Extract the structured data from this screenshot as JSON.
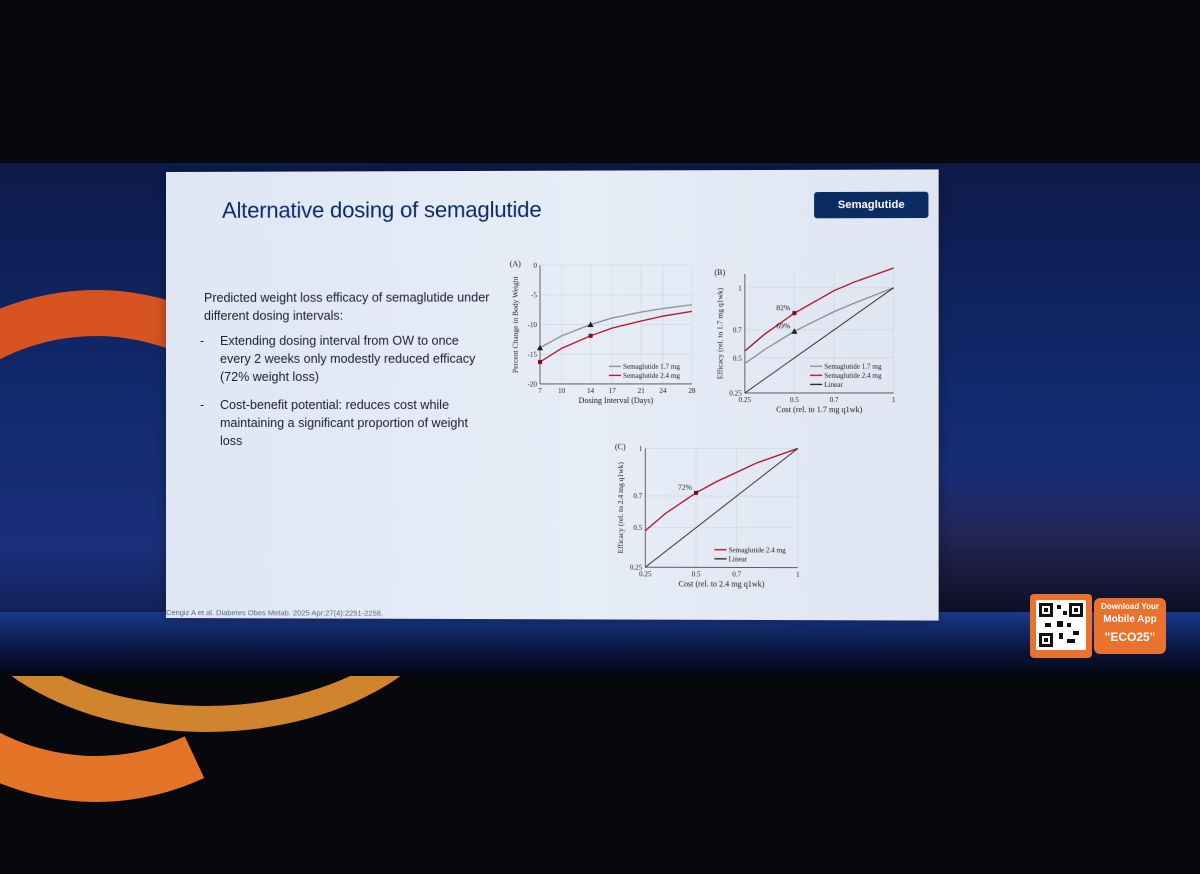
{
  "slide": {
    "title": "Alternative dosing of semaglutide",
    "tag": "Semaglutide",
    "intro": "Predicted weight loss efficacy of semaglutide under different dosing intervals:",
    "bullets": [
      "Extending dosing interval from OW to once every 2 weeks only modestly reduced efficacy (72% weight loss)",
      "Cost-benefit potential: reduces cost while maintaining a significant proportion of weight loss"
    ],
    "dash": "-",
    "citation": "Cengiz A et al. Diabetes Obes Metab. 2025 Apr;27(4):2251-2258."
  },
  "banner": {
    "line1": "Download Your",
    "line2": "Mobile App",
    "line3": "\"ECO25\""
  },
  "colors": {
    "semaglutide_17": "#8c8c8c",
    "semaglutide_24": "#b01020",
    "linear": "#222222"
  },
  "chart_data": [
    {
      "id": "A",
      "type": "line",
      "panel_label": "(A)",
      "xlabel": "Dosing Interval (Days)",
      "ylabel": "Percent Change in Body Weight",
      "xlim": [
        7,
        28
      ],
      "ylim": [
        -20,
        0
      ],
      "xticks": [
        7,
        10,
        14,
        17,
        21,
        24,
        28
      ],
      "yticks": [
        0,
        -5,
        -10,
        -15,
        -20
      ],
      "series": [
        {
          "name": "Semaglutide 1.7 mg",
          "color": "#8c8c8c",
          "x": [
            7,
            10,
            14,
            17,
            21,
            24,
            28
          ],
          "y": [
            -13.9,
            -11.9,
            -10.0,
            -8.9,
            -7.9,
            -7.3,
            -6.7
          ]
        },
        {
          "name": "Semaglutide 2.4 mg",
          "color": "#b01020",
          "x": [
            7,
            10,
            14,
            17,
            21,
            24,
            28
          ],
          "y": [
            -16.3,
            -14.0,
            -11.9,
            -10.6,
            -9.4,
            -8.6,
            -7.8
          ]
        }
      ],
      "markers": [
        {
          "series": 0,
          "shape": "triangle",
          "x": 7,
          "y": -13.9
        },
        {
          "series": 0,
          "shape": "triangle",
          "x": 14,
          "y": -10.0
        },
        {
          "series": 1,
          "shape": "square",
          "x": 7,
          "y": -16.3
        },
        {
          "series": 1,
          "shape": "square",
          "x": 14,
          "y": -11.9
        }
      ],
      "legend": "bottom-right"
    },
    {
      "id": "B",
      "type": "line",
      "panel_label": "(B)",
      "xlabel": "Cost (rel. to 1.7 mg q1wk)",
      "ylabel": "Efficacy (rel. to 1.7 mg q1wk)",
      "xlim": [
        0.25,
        1
      ],
      "ylim": [
        0.25,
        1.1
      ],
      "xticks": [
        0.25,
        0.5,
        0.7,
        1
      ],
      "yticks": [
        0.25,
        0.5,
        0.7,
        1
      ],
      "series": [
        {
          "name": "Semaglutide 1.7 mg",
          "color": "#8c8c8c",
          "x": [
            0.25,
            0.35,
            0.5,
            0.6,
            0.7,
            0.8,
            1.0
          ],
          "y": [
            0.46,
            0.56,
            0.69,
            0.76,
            0.83,
            0.89,
            1.0
          ]
        },
        {
          "name": "Semaglutide 2.4 mg",
          "color": "#b01020",
          "x": [
            0.25,
            0.35,
            0.5,
            0.6,
            0.7,
            0.8,
            1.0
          ],
          "y": [
            0.55,
            0.67,
            0.82,
            0.9,
            0.98,
            1.04,
            1.14
          ]
        },
        {
          "name": "Linear",
          "color": "#222222",
          "x": [
            0.25,
            1.0
          ],
          "y": [
            0.25,
            1.0
          ]
        }
      ],
      "markers": [
        {
          "series": 1,
          "shape": "square",
          "x": 0.5,
          "y": 0.82,
          "label": "82%"
        },
        {
          "series": 0,
          "shape": "triangle",
          "x": 0.5,
          "y": 0.69,
          "label": "69%"
        }
      ],
      "legend": "bottom-right"
    },
    {
      "id": "C",
      "type": "line",
      "panel_label": "(C)",
      "xlabel": "Cost (rel. to 2.4 mg q1wk)",
      "ylabel": "Efficacy (rel. to 2.4 mg q1wk)",
      "xlim": [
        0.25,
        1
      ],
      "ylim": [
        0.25,
        1
      ],
      "xticks": [
        0.25,
        0.5,
        0.7,
        1
      ],
      "yticks": [
        0.25,
        0.5,
        0.7,
        1
      ],
      "series": [
        {
          "name": "Semaglutide 2.4 mg",
          "color": "#b01020",
          "x": [
            0.25,
            0.35,
            0.5,
            0.6,
            0.7,
            0.8,
            1.0
          ],
          "y": [
            0.48,
            0.59,
            0.72,
            0.79,
            0.85,
            0.91,
            1.0
          ]
        },
        {
          "name": "Linear",
          "color": "#222222",
          "x": [
            0.25,
            1.0
          ],
          "y": [
            0.25,
            1.0
          ]
        }
      ],
      "markers": [
        {
          "series": 0,
          "shape": "square",
          "x": 0.5,
          "y": 0.72,
          "label": "72%"
        }
      ],
      "legend": "bottom-right"
    }
  ]
}
